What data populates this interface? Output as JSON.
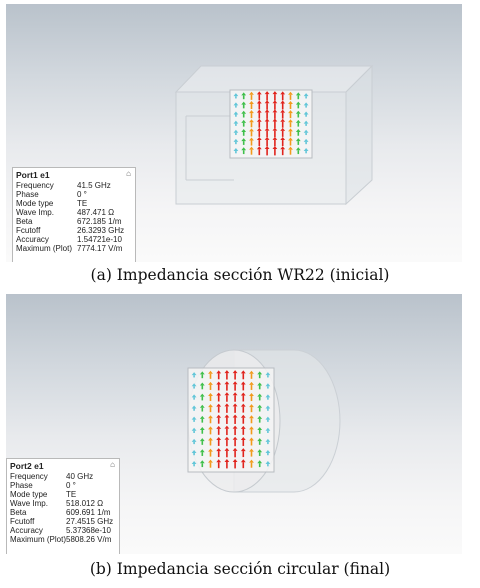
{
  "panels": {
    "port1": {
      "title": "Port1 e1",
      "pin_glyph": "⌂",
      "rows": [
        {
          "label": "Frequency",
          "value": "41.5 GHz"
        },
        {
          "label": "Phase",
          "value": "0 °"
        },
        {
          "label": "Mode type",
          "value": "TE"
        },
        {
          "label": "Wave Imp.",
          "value": "487.471 Ω"
        },
        {
          "label": "Beta",
          "value": "672.185 1/m"
        },
        {
          "label": "Fcutoff",
          "value": "26.3293 GHz"
        },
        {
          "label": "Accuracy",
          "value": "1.54721e-10"
        },
        {
          "label": "Maximum (Plot)",
          "value": "7774.17 V/m"
        }
      ]
    },
    "port2": {
      "title": "Port2 e1",
      "pin_glyph": "⌂",
      "rows": [
        {
          "label": "Frequency",
          "value": "40 GHz"
        },
        {
          "label": "Phase",
          "value": "0 °"
        },
        {
          "label": "Mode type",
          "value": "TE"
        },
        {
          "label": "Wave Imp.",
          "value": "518.012 Ω"
        },
        {
          "label": "Beta",
          "value": "609.691 1/m"
        },
        {
          "label": "Fcutoff",
          "value": "27.4515 GHz"
        },
        {
          "label": "Accuracy",
          "value": "5.37368e-10"
        },
        {
          "label": "Maximum (Plot)",
          "value": "5808.26 V/m"
        }
      ]
    }
  },
  "captions": {
    "top": "(a) Impedancia sección WR22 (inicial)",
    "bottom": "(b) Impedancia sección circular (final)"
  },
  "colors": {
    "field_strong": "#e0231c",
    "field_medium": "#f29a1c",
    "field_weak": "#3fbf4a",
    "field_faint": "#62c6d8"
  }
}
